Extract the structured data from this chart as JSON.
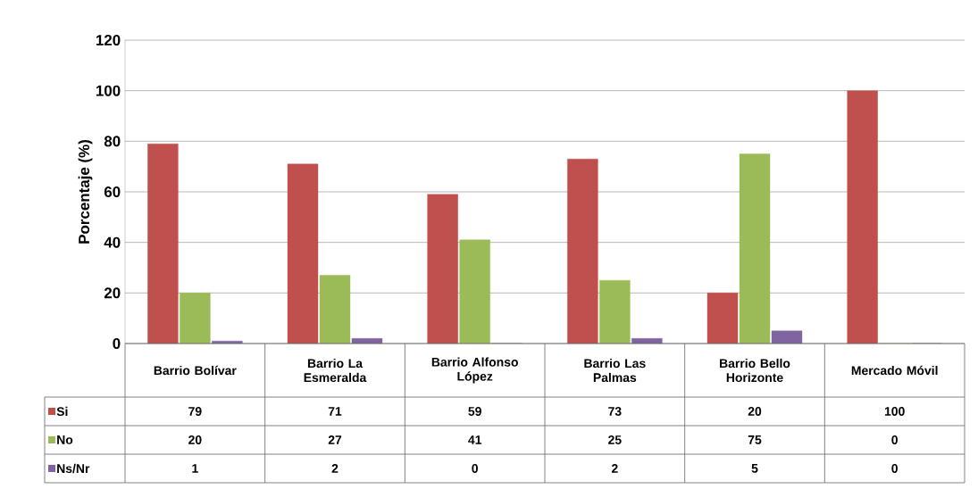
{
  "chart_data": {
    "type": "bar",
    "ylabel": "Porcentaje (%)",
    "categories": [
      "Barrio Bolívar",
      "Barrio La Esmeralda",
      "Barrio Alfonso López",
      "Barrio Las Palmas",
      "Barrio Bello Horizonte",
      "Mercado Móvil"
    ],
    "series": [
      {
        "name": "Si",
        "color": "#c0504d",
        "values": [
          79,
          71,
          59,
          73,
          20,
          100
        ]
      },
      {
        "name": "No",
        "color": "#9bbb59",
        "values": [
          20,
          27,
          41,
          25,
          75,
          0
        ]
      },
      {
        "name": "Ns/Nr",
        "color": "#8064a2",
        "values": [
          1,
          2,
          0,
          2,
          5,
          0
        ]
      }
    ],
    "ylim": [
      0,
      120
    ],
    "yticks": [
      0,
      20,
      40,
      60,
      80,
      100,
      120
    ],
    "grid": "y",
    "legend": "bottom left",
    "data_labels": true
  }
}
